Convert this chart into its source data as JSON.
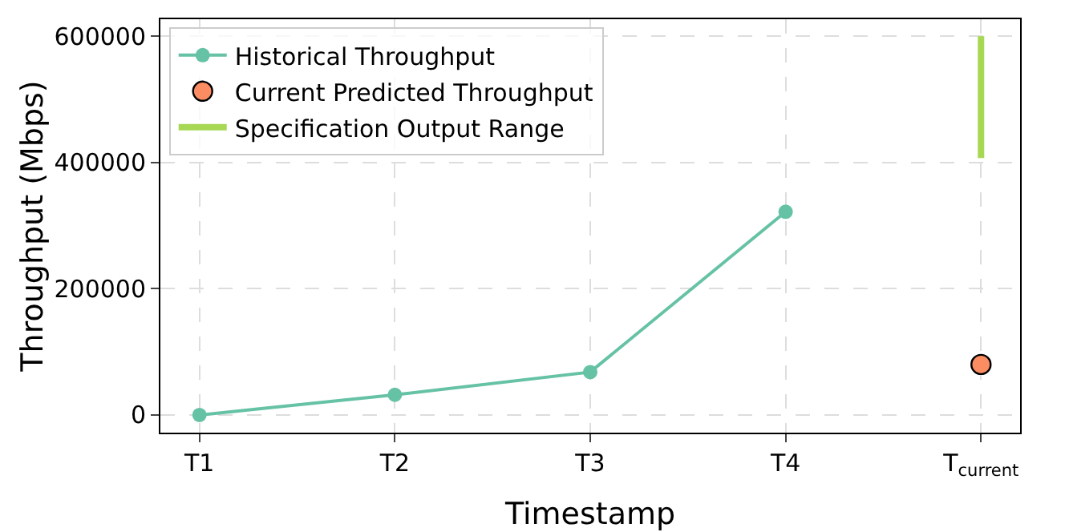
{
  "chart_data": {
    "type": "line",
    "xlabel": "Timestamp",
    "ylabel": "Throughput (Mbps)",
    "categories": [
      "T1",
      "T2",
      "T3",
      "T4",
      "T$_{current}$"
    ],
    "series": [
      {
        "name": "Historical Throughput",
        "color": "#66c2a5",
        "marker": "circle",
        "values": [
          0,
          32000,
          68000,
          322000,
          null
        ]
      },
      {
        "name": "Current Predicted Throughput",
        "type": "scatter",
        "color": "#fc8d62",
        "marker": "circle",
        "x": [
          "T$_{current}$"
        ],
        "values": [
          80000
        ]
      },
      {
        "name": "Specification Output Range",
        "type": "line",
        "color": "#a6d854",
        "marker": "none",
        "x": [
          "T$_{current}$",
          "T$_{current}$"
        ],
        "values": [
          407000,
          600000
        ]
      }
    ],
    "ylim": [
      -28000,
      627000
    ],
    "yticks": [
      0,
      200000,
      400000,
      600000
    ],
    "grid": true,
    "legend": "top left"
  }
}
